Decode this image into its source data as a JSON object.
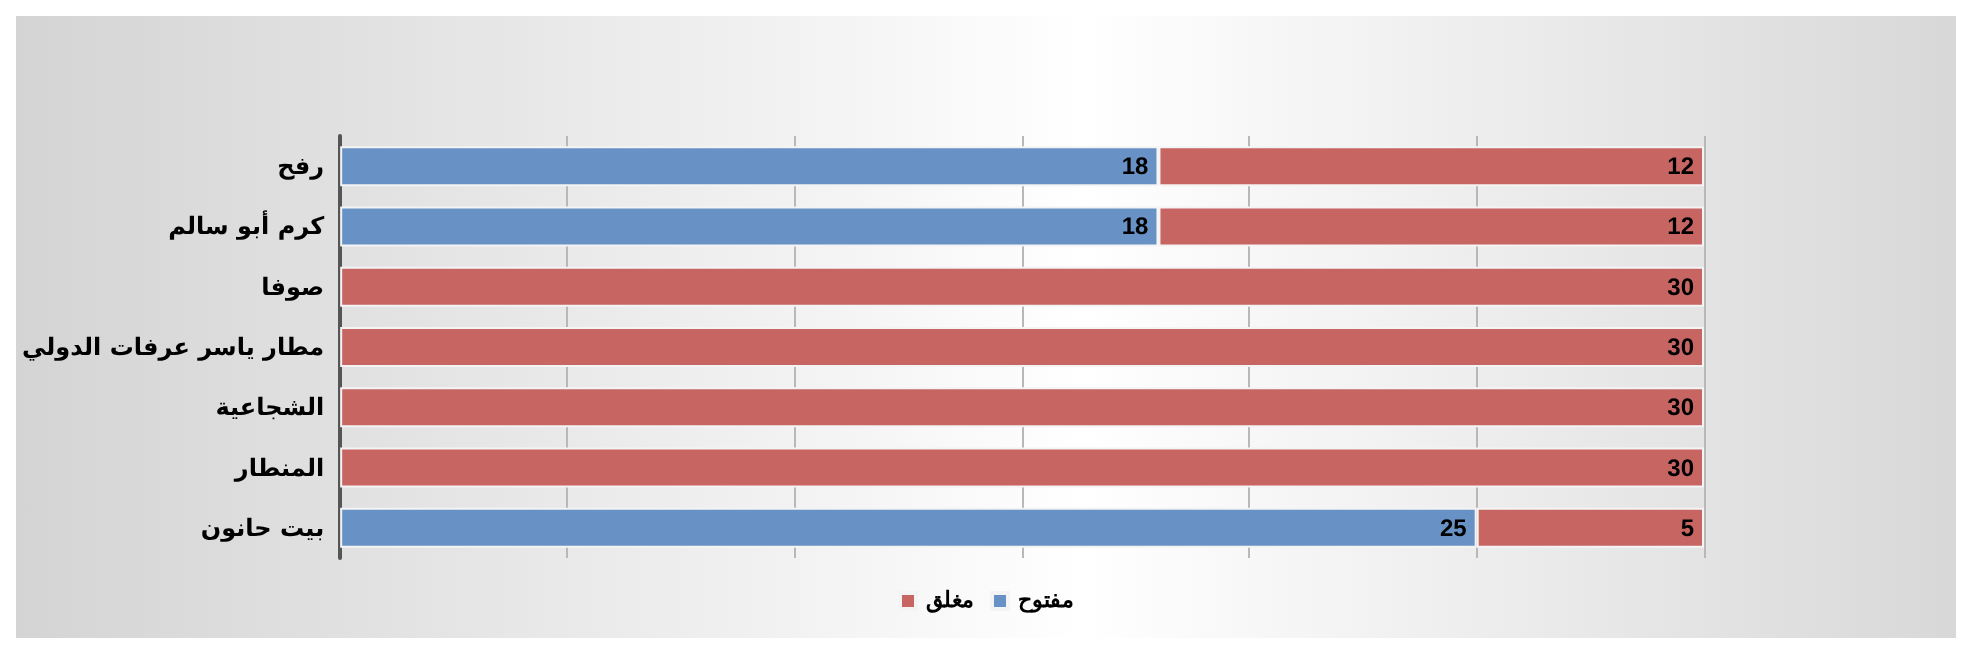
{
  "chart_data": {
    "type": "bar",
    "orientation": "horizontal",
    "stacked": true,
    "categories": [
      "رفح",
      "كرم أبو سالم",
      "صوفا",
      "مطار ياسر عرفات الدولي",
      "الشجاعية",
      "المنطار",
      "بيت حانون"
    ],
    "series": [
      {
        "name": "مفتوح",
        "color": "#6892c5",
        "values": [
          18,
          18,
          null,
          null,
          null,
          null,
          25
        ]
      },
      {
        "name": "مغلق",
        "color": "#c76563",
        "values": [
          12,
          12,
          30,
          30,
          30,
          30,
          5
        ]
      }
    ],
    "xlim": [
      0,
      30
    ],
    "xticks": [
      0,
      5,
      10,
      15,
      20,
      25,
      30
    ],
    "grid": "x",
    "tick_labels": "y",
    "legend": "bottom",
    "data_labels": true
  }
}
